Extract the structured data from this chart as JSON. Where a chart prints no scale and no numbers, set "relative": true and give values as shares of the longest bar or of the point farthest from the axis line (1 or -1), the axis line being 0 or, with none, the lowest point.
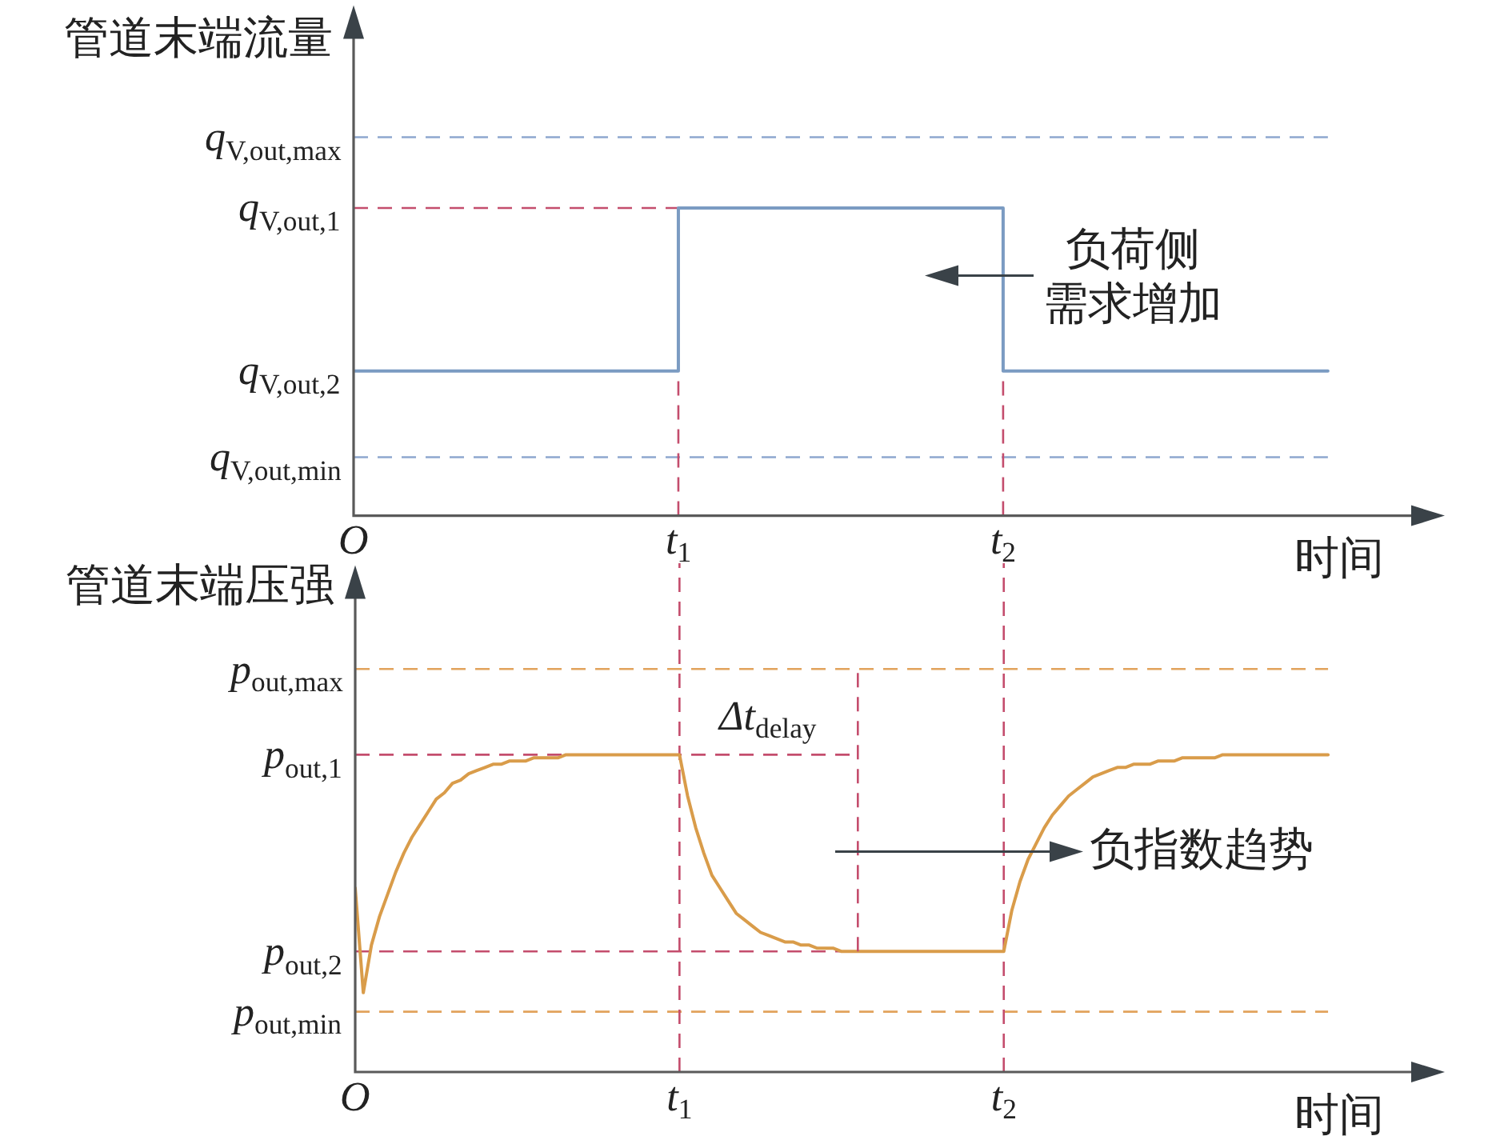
{
  "chart_data": [
    {
      "type": "step",
      "ylabel": "管道末端流量",
      "xlabel": "时间",
      "relative": true,
      "categories": [
        "O",
        "t$_{1}$",
        "t$_{2}$",
        null
      ],
      "series": [
        {
          "color": "#7b9bc2",
          "values": [
            0.47,
            1,
            0.47,
            0.47
          ]
        },
        {
          "type": "line",
          "values": [
            1,
            1,
            null,
            null
          ],
          "color": "#c44d6d",
          "line_style": "dashed"
        }
      ],
      "ref_lines": [
        {
          "axis": "y",
          "value": 1.23,
          "label": "q$_{V,out,max}$",
          "color": "#8ea8cf",
          "line_style": "dashed"
        },
        {
          "axis": "y",
          "value": 0.19,
          "label": "q$_{V,out,min}$",
          "color": "#8ea8cf",
          "line_style": "dashed"
        },
        {
          "axis": "x",
          "value": "t$_{1}$",
          "color": "#c44d6d",
          "line_style": "dashed"
        },
        {
          "axis": "x",
          "value": "t$_{2}$",
          "color": "#c44d6d",
          "line_style": "dashed"
        }
      ],
      "annotations": [
        "q$_{V,out,1}$",
        "q$_{V,out,2}$",
        "负荷侧需求增加"
      ]
    },
    {
      "type": "line",
      "ylabel": "管道末端压强",
      "xlabel": "时间",
      "relative": true,
      "categories": [
        "O",
        null,
        null,
        null,
        null,
        null,
        null,
        null,
        null,
        null,
        null,
        null,
        null,
        null,
        null,
        null,
        null,
        null,
        null,
        null,
        null,
        null,
        null,
        null,
        null,
        null,
        null,
        null,
        null,
        null,
        null,
        null,
        null,
        null,
        null,
        null,
        null,
        null,
        null,
        null,
        "t$_{1}$",
        null,
        null,
        null,
        null,
        null,
        null,
        null,
        null,
        null,
        null,
        null,
        null,
        null,
        null,
        null,
        null,
        null,
        null,
        null,
        null,
        null,
        null,
        null,
        null,
        null,
        null,
        null,
        null,
        null,
        null,
        null,
        null,
        null,
        null,
        null,
        null,
        null,
        null,
        null,
        "t$_{2}$",
        null,
        null,
        null,
        null,
        null,
        null,
        null,
        null,
        null,
        null,
        null,
        null,
        null,
        null,
        null,
        null,
        null,
        null,
        null,
        null,
        null,
        null,
        null,
        null,
        null,
        null,
        null,
        null,
        null,
        null,
        null,
        null,
        null,
        null,
        null,
        null,
        null,
        null,
        null,
        null
      ],
      "series": [
        {
          "color": "#d99c4a",
          "values": [
            0.58,
            0.25,
            0.4,
            0.49,
            0.56,
            0.63,
            0.69,
            0.74,
            0.78,
            0.82,
            0.86,
            0.88,
            0.91,
            0.92,
            0.94,
            0.95,
            0.96,
            0.97,
            0.97,
            0.98,
            0.98,
            0.98,
            0.99,
            0.99,
            0.99,
            0.99,
            1,
            1,
            1,
            1,
            1,
            1,
            1,
            1,
            1,
            1,
            1,
            1,
            1,
            1,
            1,
            0.87,
            0.77,
            0.69,
            0.62,
            0.58,
            0.54,
            0.5,
            0.48,
            0.46,
            0.44,
            0.43,
            0.42,
            0.41,
            0.41,
            0.4,
            0.4,
            0.39,
            0.39,
            0.39,
            0.38,
            0.38,
            0.38,
            0.38,
            0.38,
            0.38,
            0.38,
            0.38,
            0.38,
            0.38,
            0.38,
            0.38,
            0.38,
            0.38,
            0.38,
            0.38,
            0.38,
            0.38,
            0.38,
            0.38,
            0.38,
            0.51,
            0.6,
            0.67,
            0.72,
            0.77,
            0.81,
            0.84,
            0.87,
            0.89,
            0.91,
            0.93,
            0.94,
            0.95,
            0.96,
            0.96,
            0.97,
            0.97,
            0.97,
            0.98,
            0.98,
            0.98,
            0.99,
            0.99,
            0.99,
            0.99,
            0.99,
            1,
            1,
            1,
            1,
            1,
            1,
            1,
            1,
            1,
            1,
            1,
            1,
            1,
            1
          ]
        },
        {
          "type": "line",
          "color": "#c44d6d",
          "line_style": "dashed",
          "values": [
            1,
            1,
            1,
            1,
            1,
            1,
            1,
            1,
            1,
            1,
            1,
            1,
            1,
            1,
            1,
            1,
            1,
            1,
            1,
            1,
            1,
            1,
            1,
            1,
            1,
            1,
            1,
            1,
            1,
            1,
            1,
            1,
            1,
            1,
            1,
            1,
            1,
            1,
            1,
            1,
            1,
            1,
            1,
            1,
            1,
            1,
            1,
            1,
            1,
            1,
            1,
            1,
            1,
            1,
            1,
            1,
            1,
            1,
            1,
            1,
            1,
            1,
            1,
            null,
            null,
            null,
            null,
            null,
            null,
            null,
            null,
            null,
            null,
            null,
            null,
            null,
            null,
            null,
            null,
            null,
            null,
            null,
            null,
            null,
            null,
            null,
            null,
            null,
            null,
            null,
            null,
            null,
            null,
            null,
            null,
            null,
            null,
            null,
            null,
            null,
            null,
            null,
            null,
            null,
            null,
            null,
            null,
            null,
            null,
            null,
            null,
            null,
            null,
            null,
            null,
            null,
            null,
            null,
            null,
            null,
            null
          ]
        },
        {
          "type": "line",
          "color": "#c44d6d",
          "line_style": "dashed",
          "values": [
            0.38,
            0.38,
            0.38,
            0.38,
            0.38,
            0.38,
            0.38,
            0.38,
            0.38,
            0.38,
            0.38,
            0.38,
            0.38,
            0.38,
            0.38,
            0.38,
            0.38,
            0.38,
            0.38,
            0.38,
            0.38,
            0.38,
            0.38,
            0.38,
            0.38,
            0.38,
            0.38,
            0.38,
            0.38,
            0.38,
            0.38,
            0.38,
            0.38,
            0.38,
            0.38,
            0.38,
            0.38,
            0.38,
            0.38,
            0.38,
            0.38,
            0.38,
            0.38,
            0.38,
            0.38,
            0.38,
            0.38,
            0.38,
            0.38,
            0.38,
            0.38,
            0.38,
            0.38,
            0.38,
            0.38,
            0.38,
            0.38,
            0.38,
            0.38,
            0.38,
            0.38,
            0.38,
            0.38,
            null,
            null,
            null,
            null,
            null,
            null,
            null,
            null,
            null,
            null,
            null,
            null,
            null,
            null,
            null,
            null,
            null,
            null,
            null,
            null,
            null,
            null,
            null,
            null,
            null,
            null,
            null,
            null,
            null,
            null,
            null,
            null,
            null,
            null,
            null,
            null,
            null,
            null,
            null,
            null,
            null,
            null,
            null,
            null,
            null,
            null,
            null,
            null,
            null,
            null,
            null,
            null,
            null,
            null,
            null,
            null,
            null,
            null
          ]
        }
      ],
      "ref_lines": [
        {
          "axis": "y",
          "value": 1.27,
          "label": "p$_{out,max}$",
          "color": "#e2a35c",
          "line_style": "dashed"
        },
        {
          "axis": "y",
          "value": 0.19,
          "label": "p$_{out,min}$",
          "color": "#e2a35c",
          "line_style": "dashed"
        },
        {
          "axis": "x",
          "value": "t$_{1}$",
          "color": "#c44d6d",
          "line_style": "dashed"
        },
        {
          "axis": "x",
          "value": "t$_{2}$",
          "color": "#c44d6d",
          "line_style": "dashed"
        }
      ],
      "annotations": [
        "p$_{out,1}$",
        "p$_{out,2}$",
        "Δt$_{delay}$",
        "负指数趋势"
      ]
    }
  ]
}
